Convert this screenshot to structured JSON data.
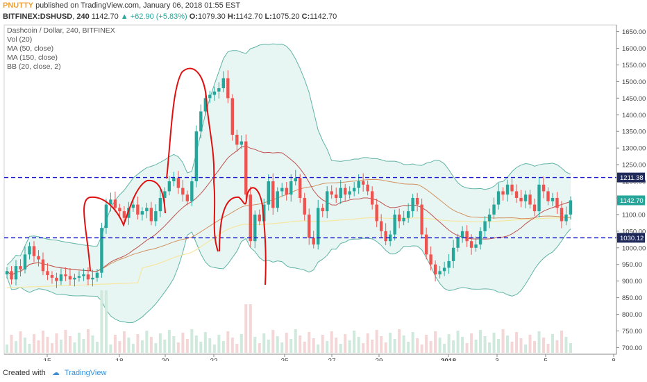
{
  "header": {
    "user": "PNUTTY",
    "published_text": "published on TradingView.com, January 06, 2018 01:55 EST",
    "symbol": "BITFINEX:DSHUSD",
    "interval": "240",
    "last": "1142.70",
    "change": "▲ +62.90 (+5.83%)",
    "open_label": "O:",
    "open": "1079.30",
    "high_label": "H:",
    "high": "1142.70",
    "low_label": "L:",
    "low": "1075.20",
    "close_label": "C:",
    "close": "1142.70"
  },
  "legend": {
    "title": "Dashcoin / Dollar, 240, BITFINEX",
    "vol": "Vol (20)",
    "ma50": "MA (50, close)",
    "ma150": "MA (150, close)",
    "bb": "BB (20, close, 2)"
  },
  "footer": {
    "created_with": "Created with",
    "brand": "TradingView"
  },
  "colors": {
    "up": "#26a69a",
    "down": "#ef5350",
    "bb_line": "#5fb3a5",
    "bb_fill": "#e8f6f3",
    "ma_mid": "#c0504d",
    "ma50": "#d2915f",
    "ma150": "#f5e6a0",
    "level_line": "#1a1acc",
    "annotation": "#e01010",
    "badge_price": "#26a69a"
  },
  "chart_data": {
    "type": "candlestick",
    "y_ticks": [
      "1650.00",
      "1600.00",
      "1550.00",
      "1500.00",
      "1450.00",
      "1400.00",
      "1350.00",
      "1300.00",
      "1250.00",
      "1200.00",
      "1150.00",
      "1100.00",
      "1050.00",
      "1000.00",
      "950.00",
      "900.00",
      "850.00",
      "800.00",
      "750.00",
      "700.00"
    ],
    "ylim": [
      680,
      1670
    ],
    "x_ticks": [
      "15",
      "18",
      "20",
      "22",
      "25",
      "27",
      "29",
      "2018",
      "3",
      "5",
      "8"
    ],
    "horizontal_levels": [
      {
        "value": 1211.38,
        "label": "1211.38"
      },
      {
        "value": 1030.12,
        "label": "1030.12"
      }
    ],
    "last_price_label": "1142.70",
    "last_price": 1142.7,
    "closes": [
      930,
      905,
      945,
      935,
      980,
      1005,
      975,
      965,
      930,
      918,
      910,
      900,
      920,
      915,
      905,
      910,
      915,
      920,
      905,
      910,
      925,
      1060,
      1130,
      1145,
      1120,
      1110,
      1090,
      1120,
      1130,
      1100,
      1110,
      1120,
      1080,
      1110,
      1150,
      1170,
      1200,
      1210,
      1180,
      1160,
      1140,
      1200,
      1350,
      1410,
      1450,
      1460,
      1470,
      1480,
      1510,
      1450,
      1340,
      1310,
      1320,
      1160,
      1020,
      1100,
      1080,
      1130,
      1200,
      1120,
      1170,
      1180,
      1160,
      1200,
      1210,
      1150,
      1100,
      1030,
      1010,
      1120,
      1110,
      1170,
      1160,
      1150,
      1180,
      1160,
      1170,
      1180,
      1200,
      1190,
      1170,
      1130,
      1080,
      1050,
      1020,
      1040,
      1100,
      1080,
      1090,
      1110,
      1150,
      1130,
      1040,
      980,
      950,
      920,
      930,
      940,
      960,
      1000,
      1030,
      1050,
      1020,
      1000,
      1010,
      1050,
      1080,
      1100,
      1130,
      1170,
      1160,
      1190,
      1170,
      1150,
      1140,
      1160,
      1130,
      1110,
      1190,
      1170,
      1140,
      1150,
      1120,
      1080,
      1100,
      1142.7
    ],
    "volume_level": "low, with spikes near 18 and 22"
  }
}
